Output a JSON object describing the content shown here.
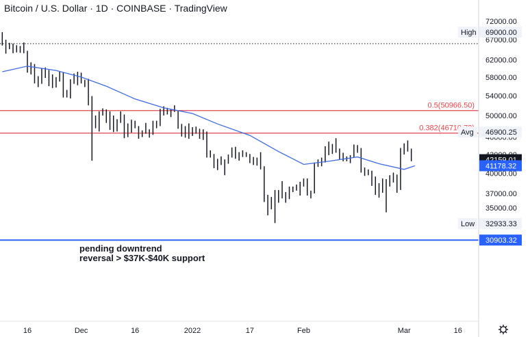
{
  "header": {
    "title": "Bitcoin / U.S. Dollar · 1D · COINBASE · TradingView"
  },
  "chart_data": {
    "type": "ohlc",
    "title": "Bitcoin / U.S. Dollar · 1D · COINBASE · TradingView",
    "xlabel": "",
    "ylabel": "",
    "ylim": [
      30000,
      74000
    ],
    "y_scale": "log",
    "grid": false,
    "y_ticks": [
      "72000.00",
      "69000.00",
      "67000.00",
      "62000.00",
      "58000.00",
      "54000.00",
      "50000.00",
      "46000.00",
      "43000.00",
      "40000.00",
      "37000.00",
      "35000.00",
      "32933.33",
      "30903.32"
    ],
    "x_ticks": [
      {
        "label": "16",
        "date": "2021-11-16"
      },
      {
        "label": "Dec",
        "date": "2021-12-01"
      },
      {
        "label": "16",
        "date": "2021-12-16"
      },
      {
        "label": "2022",
        "date": "2022-01-01"
      },
      {
        "label": "17",
        "date": "2022-01-17"
      },
      {
        "label": "Feb",
        "date": "2022-02-01"
      },
      {
        "label": "Mar",
        "date": "2022-03-01"
      },
      {
        "label": "16",
        "date": "2022-03-16"
      }
    ],
    "price_labels": [
      {
        "name": "High",
        "value": 69000.0,
        "text": "69000.00"
      },
      {
        "name": "Avg",
        "value": 46900.25,
        "text": "46900.25"
      },
      {
        "name": "",
        "value": 42159.01,
        "text": "42159.01"
      },
      {
        "name": "",
        "value": 41178.32,
        "text": "41178.32"
      },
      {
        "name": "Low",
        "value": 32933.33,
        "text": "32933.33"
      },
      {
        "name": "",
        "value": 30903.32,
        "text": "30903.32"
      }
    ],
    "high_line": 66000,
    "fib_levels": [
      {
        "label": "0.5(50966.50)",
        "value": 50966.5
      },
      {
        "label": "0.382(46710.72)",
        "value": 46710.72
      }
    ],
    "annotation": [
      "pending downtrend",
      "reversal > $37K-$40K support"
    ],
    "series": [
      {
        "values": [
          {
            "date": "2021-11-09",
            "high": 69000,
            "low": 65500
          },
          {
            "date": "2021-11-10",
            "high": 67000,
            "low": 63500
          },
          {
            "date": "2021-11-11",
            "high": 66200,
            "low": 64600
          },
          {
            "date": "2021-11-12",
            "high": 66000,
            "low": 63600
          },
          {
            "date": "2021-11-13",
            "high": 65600,
            "low": 63800
          },
          {
            "date": "2021-11-14",
            "high": 65400,
            "low": 63700
          },
          {
            "date": "2021-11-15",
            "high": 66300,
            "low": 63600
          },
          {
            "date": "2021-11-16",
            "high": 64200,
            "low": 59000
          },
          {
            "date": "2021-11-17",
            "high": 61400,
            "low": 58600
          },
          {
            "date": "2021-11-18",
            "high": 61000,
            "low": 56600
          },
          {
            "date": "2021-11-19",
            "high": 58200,
            "low": 55800
          },
          {
            "date": "2021-11-20",
            "high": 60000,
            "low": 56500
          },
          {
            "date": "2021-11-21",
            "high": 60200,
            "low": 57800
          },
          {
            "date": "2021-11-22",
            "high": 59600,
            "low": 56000
          },
          {
            "date": "2021-11-23",
            "high": 58600,
            "low": 55600
          },
          {
            "date": "2021-11-24",
            "high": 58000,
            "low": 55700
          },
          {
            "date": "2021-11-25",
            "high": 59200,
            "low": 57000
          },
          {
            "date": "2021-11-26",
            "high": 59000,
            "low": 53600
          },
          {
            "date": "2021-11-27",
            "high": 55200,
            "low": 53600
          },
          {
            "date": "2021-11-28",
            "high": 57500,
            "low": 53400
          },
          {
            "date": "2021-11-29",
            "high": 58800,
            "low": 56500
          },
          {
            "date": "2021-11-30",
            "high": 59200,
            "low": 56200
          },
          {
            "date": "2021-12-01",
            "high": 59000,
            "low": 56600
          },
          {
            "date": "2021-12-02",
            "high": 57400,
            "low": 55800
          },
          {
            "date": "2021-12-03",
            "high": 57600,
            "low": 52000
          },
          {
            "date": "2021-12-04",
            "high": 53900,
            "low": 42000
          },
          {
            "date": "2021-12-05",
            "high": 50000,
            "low": 47600
          },
          {
            "date": "2021-12-06",
            "high": 50800,
            "low": 47000
          },
          {
            "date": "2021-12-07",
            "high": 51400,
            "low": 50000
          },
          {
            "date": "2021-12-08",
            "high": 51200,
            "low": 48600
          },
          {
            "date": "2021-12-09",
            "high": 50800,
            "low": 47300
          },
          {
            "date": "2021-12-10",
            "high": 50000,
            "low": 46900
          },
          {
            "date": "2021-12-11",
            "high": 49300,
            "low": 47000
          },
          {
            "date": "2021-12-12",
            "high": 50800,
            "low": 48600
          },
          {
            "date": "2021-12-13",
            "high": 50200,
            "low": 45800
          },
          {
            "date": "2021-12-14",
            "high": 48500,
            "low": 46000
          },
          {
            "date": "2021-12-15",
            "high": 49200,
            "low": 46800
          },
          {
            "date": "2021-12-16",
            "high": 49000,
            "low": 47600
          },
          {
            "date": "2021-12-17",
            "high": 48000,
            "low": 45700
          },
          {
            "date": "2021-12-18",
            "high": 47200,
            "low": 46000
          },
          {
            "date": "2021-12-19",
            "high": 48600,
            "low": 46600
          },
          {
            "date": "2021-12-20",
            "high": 47400,
            "low": 45900
          },
          {
            "date": "2021-12-21",
            "high": 49000,
            "low": 46400
          },
          {
            "date": "2021-12-22",
            "high": 49000,
            "low": 47600
          },
          {
            "date": "2021-12-23",
            "high": 51300,
            "low": 48000
          },
          {
            "date": "2021-12-24",
            "high": 51800,
            "low": 50000
          },
          {
            "date": "2021-12-25",
            "high": 51500,
            "low": 50200
          },
          {
            "date": "2021-12-26",
            "high": 51300,
            "low": 49700
          },
          {
            "date": "2021-12-27",
            "high": 52000,
            "low": 50700
          },
          {
            "date": "2021-12-28",
            "high": 50900,
            "low": 47500
          },
          {
            "date": "2021-12-29",
            "high": 48400,
            "low": 46100
          },
          {
            "date": "2021-12-30",
            "high": 48000,
            "low": 45900
          },
          {
            "date": "2021-12-31",
            "high": 48500,
            "low": 45700
          },
          {
            "date": "2022-01-01",
            "high": 47800,
            "low": 46200
          },
          {
            "date": "2022-01-02",
            "high": 47900,
            "low": 46600
          },
          {
            "date": "2022-01-03",
            "high": 47500,
            "low": 45700
          },
          {
            "date": "2022-01-04",
            "high": 47400,
            "low": 45500
          },
          {
            "date": "2022-01-05",
            "high": 47000,
            "low": 42500
          },
          {
            "date": "2022-01-06",
            "high": 43700,
            "low": 42500
          },
          {
            "date": "2022-01-07",
            "high": 43100,
            "low": 40800
          },
          {
            "date": "2022-01-08",
            "high": 42300,
            "low": 40500
          },
          {
            "date": "2022-01-09",
            "high": 42700,
            "low": 41300
          },
          {
            "date": "2022-01-10",
            "high": 42200,
            "low": 39700
          },
          {
            "date": "2022-01-11",
            "high": 43000,
            "low": 41500
          },
          {
            "date": "2022-01-12",
            "high": 44200,
            "low": 42500
          },
          {
            "date": "2022-01-13",
            "high": 44300,
            "low": 42300
          },
          {
            "date": "2022-01-14",
            "high": 43400,
            "low": 42000
          },
          {
            "date": "2022-01-15",
            "high": 43700,
            "low": 42600
          },
          {
            "date": "2022-01-16",
            "high": 43400,
            "low": 42600
          },
          {
            "date": "2022-01-17",
            "high": 43100,
            "low": 41600
          },
          {
            "date": "2022-01-18",
            "high": 42600,
            "low": 41300
          },
          {
            "date": "2022-01-19",
            "high": 42500,
            "low": 41200
          },
          {
            "date": "2022-01-20",
            "high": 43400,
            "low": 40600
          },
          {
            "date": "2022-01-21",
            "high": 41100,
            "low": 35800
          },
          {
            "date": "2022-01-22",
            "high": 36800,
            "low": 34000
          },
          {
            "date": "2022-01-23",
            "high": 36500,
            "low": 34800
          },
          {
            "date": "2022-01-24",
            "high": 37500,
            "low": 33000
          },
          {
            "date": "2022-01-25",
            "high": 37500,
            "low": 35700
          },
          {
            "date": "2022-01-26",
            "high": 38800,
            "low": 36300
          },
          {
            "date": "2022-01-27",
            "high": 37200,
            "low": 35700
          },
          {
            "date": "2022-01-28",
            "high": 38000,
            "low": 36200
          },
          {
            "date": "2022-01-29",
            "high": 38000,
            "low": 37200
          },
          {
            "date": "2022-01-30",
            "high": 38300,
            "low": 37400
          },
          {
            "date": "2022-01-31",
            "high": 38700,
            "low": 36700
          },
          {
            "date": "2022-02-01",
            "high": 39200,
            "low": 38000
          },
          {
            "date": "2022-02-02",
            "high": 39200,
            "low": 36700
          },
          {
            "date": "2022-02-03",
            "high": 37400,
            "low": 36300
          },
          {
            "date": "2022-02-04",
            "high": 41700,
            "low": 37000
          },
          {
            "date": "2022-02-05",
            "high": 42200,
            "low": 41000
          },
          {
            "date": "2022-02-06",
            "high": 42500,
            "low": 41100
          },
          {
            "date": "2022-02-07",
            "high": 44400,
            "low": 41700
          },
          {
            "date": "2022-02-08",
            "high": 45200,
            "low": 42900
          },
          {
            "date": "2022-02-09",
            "high": 44800,
            "low": 43100
          },
          {
            "date": "2022-02-10",
            "high": 45800,
            "low": 43300
          },
          {
            "date": "2022-02-11",
            "high": 44000,
            "low": 42200
          },
          {
            "date": "2022-02-12",
            "high": 43300,
            "low": 41900
          },
          {
            "date": "2022-02-13",
            "high": 42700,
            "low": 41900
          },
          {
            "date": "2022-02-14",
            "high": 42900,
            "low": 41600
          },
          {
            "date": "2022-02-15",
            "high": 44700,
            "low": 42500
          },
          {
            "date": "2022-02-16",
            "high": 44600,
            "low": 43300
          },
          {
            "date": "2022-02-17",
            "high": 44100,
            "low": 40100
          },
          {
            "date": "2022-02-18",
            "high": 40900,
            "low": 39600
          },
          {
            "date": "2022-02-19",
            "high": 40600,
            "low": 39700
          },
          {
            "date": "2022-02-20",
            "high": 40400,
            "low": 38100
          },
          {
            "date": "2022-02-21",
            "high": 39500,
            "low": 36800
          },
          {
            "date": "2022-02-22",
            "high": 38500,
            "low": 36400
          },
          {
            "date": "2022-02-23",
            "high": 39200,
            "low": 37100
          },
          {
            "date": "2022-02-24",
            "high": 39100,
            "low": 34400
          },
          {
            "date": "2022-02-25",
            "high": 39700,
            "low": 38000
          },
          {
            "date": "2022-02-26",
            "high": 40100,
            "low": 38600
          },
          {
            "date": "2022-02-27",
            "high": 39800,
            "low": 37100
          },
          {
            "date": "2022-02-28",
            "high": 44100,
            "low": 37500
          },
          {
            "date": "2022-03-01",
            "high": 44900,
            "low": 43000
          },
          {
            "date": "2022-03-02",
            "high": 45400,
            "low": 43500
          },
          {
            "date": "2022-03-03",
            "high": 44000,
            "low": 41900
          }
        ]
      },
      {
        "type": "line",
        "values": [
          {
            "date": "2021-11-09",
            "y": 59200
          },
          {
            "date": "2021-11-16",
            "y": 60500
          },
          {
            "date": "2021-11-24",
            "y": 59500
          },
          {
            "date": "2021-12-01",
            "y": 58000
          },
          {
            "date": "2021-12-08",
            "y": 56000
          },
          {
            "date": "2021-12-16",
            "y": 53300
          },
          {
            "date": "2021-12-24",
            "y": 51500
          },
          {
            "date": "2022-01-01",
            "y": 50400
          },
          {
            "date": "2022-01-08",
            "y": 48400
          },
          {
            "date": "2022-01-17",
            "y": 46300
          },
          {
            "date": "2022-01-25",
            "y": 43500
          },
          {
            "date": "2022-02-01",
            "y": 41400
          },
          {
            "date": "2022-02-08",
            "y": 41900
          },
          {
            "date": "2022-02-16",
            "y": 42600
          },
          {
            "date": "2022-02-22",
            "y": 41500
          },
          {
            "date": "2022-03-01",
            "y": 40600
          },
          {
            "date": "2022-03-04",
            "y": 41178.32
          }
        ]
      }
    ]
  },
  "toolbar": {
    "settings_icon": "gear-icon"
  },
  "colors": {
    "bar": "#131722",
    "ma_line": "#3d6be0",
    "fib_line": "#e2454d",
    "bottom_line": "#2962ff",
    "axis_tag_dark": "#131722",
    "axis_tag_blue": "#2962ff",
    "axis_tag_light": "#f0f3fa"
  }
}
